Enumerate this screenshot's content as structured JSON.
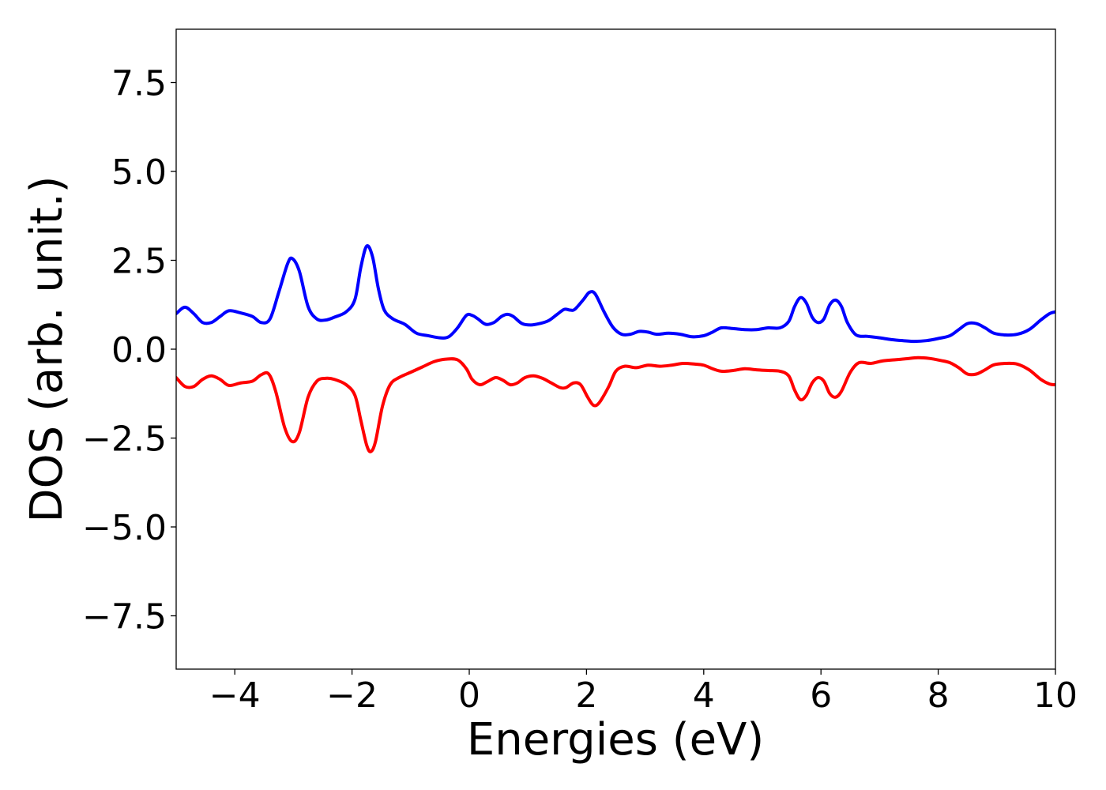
{
  "chart_data": {
    "type": "line",
    "title": "",
    "xlabel": "Energies (eV)",
    "ylabel": "DOS (arb. unit.)",
    "xlim": [
      -5,
      10
    ],
    "ylim": [
      -9,
      9
    ],
    "grid": false,
    "legend": "none",
    "x_ticks": [
      {
        "value": -4,
        "label": "−4"
      },
      {
        "value": -2,
        "label": "−2"
      },
      {
        "value": 0,
        "label": "0"
      },
      {
        "value": 2,
        "label": "2"
      },
      {
        "value": 4,
        "label": "4"
      },
      {
        "value": 6,
        "label": "6"
      },
      {
        "value": 8,
        "label": "8"
      },
      {
        "value": 10,
        "label": "10"
      }
    ],
    "y_ticks": [
      {
        "value": 7.5,
        "label": "7.5"
      },
      {
        "value": 5.0,
        "label": "5.0"
      },
      {
        "value": 2.5,
        "label": "2.5"
      },
      {
        "value": 0.0,
        "label": "0.0"
      },
      {
        "value": -2.5,
        "label": "−2.5"
      },
      {
        "value": -5.0,
        "label": "−5.0"
      },
      {
        "value": -7.5,
        "label": "−7.5"
      }
    ],
    "series": [
      {
        "color": "#0000ff",
        "points": [
          [
            -5.0,
            1.0
          ],
          [
            -4.85,
            1.18
          ],
          [
            -4.7,
            1.0
          ],
          [
            -4.55,
            0.75
          ],
          [
            -4.4,
            0.75
          ],
          [
            -4.25,
            0.92
          ],
          [
            -4.1,
            1.08
          ],
          [
            -3.9,
            1.02
          ],
          [
            -3.7,
            0.92
          ],
          [
            -3.55,
            0.75
          ],
          [
            -3.4,
            0.85
          ],
          [
            -3.25,
            1.6
          ],
          [
            -3.1,
            2.4
          ],
          [
            -3.02,
            2.55
          ],
          [
            -2.9,
            2.2
          ],
          [
            -2.75,
            1.2
          ],
          [
            -2.6,
            0.85
          ],
          [
            -2.45,
            0.82
          ],
          [
            -2.3,
            0.9
          ],
          [
            -2.1,
            1.05
          ],
          [
            -1.95,
            1.4
          ],
          [
            -1.85,
            2.3
          ],
          [
            -1.75,
            2.9
          ],
          [
            -1.65,
            2.6
          ],
          [
            -1.55,
            1.7
          ],
          [
            -1.45,
            1.1
          ],
          [
            -1.3,
            0.85
          ],
          [
            -1.1,
            0.7
          ],
          [
            -0.9,
            0.45
          ],
          [
            -0.7,
            0.38
          ],
          [
            -0.5,
            0.32
          ],
          [
            -0.35,
            0.35
          ],
          [
            -0.2,
            0.6
          ],
          [
            -0.05,
            0.95
          ],
          [
            0.05,
            0.95
          ],
          [
            0.15,
            0.85
          ],
          [
            0.28,
            0.7
          ],
          [
            0.42,
            0.75
          ],
          [
            0.55,
            0.92
          ],
          [
            0.65,
            0.98
          ],
          [
            0.75,
            0.92
          ],
          [
            0.9,
            0.72
          ],
          [
            1.05,
            0.68
          ],
          [
            1.2,
            0.72
          ],
          [
            1.35,
            0.8
          ],
          [
            1.5,
            0.98
          ],
          [
            1.62,
            1.12
          ],
          [
            1.72,
            1.1
          ],
          [
            1.8,
            1.12
          ],
          [
            1.95,
            1.4
          ],
          [
            2.05,
            1.6
          ],
          [
            2.15,
            1.55
          ],
          [
            2.3,
            1.05
          ],
          [
            2.45,
            0.62
          ],
          [
            2.6,
            0.42
          ],
          [
            2.75,
            0.42
          ],
          [
            2.9,
            0.5
          ],
          [
            3.05,
            0.48
          ],
          [
            3.2,
            0.42
          ],
          [
            3.4,
            0.45
          ],
          [
            3.6,
            0.42
          ],
          [
            3.8,
            0.35
          ],
          [
            4.0,
            0.38
          ],
          [
            4.15,
            0.48
          ],
          [
            4.3,
            0.6
          ],
          [
            4.5,
            0.58
          ],
          [
            4.7,
            0.55
          ],
          [
            4.9,
            0.55
          ],
          [
            5.1,
            0.6
          ],
          [
            5.3,
            0.6
          ],
          [
            5.45,
            0.78
          ],
          [
            5.55,
            1.2
          ],
          [
            5.65,
            1.45
          ],
          [
            5.75,
            1.3
          ],
          [
            5.85,
            0.9
          ],
          [
            5.95,
            0.75
          ],
          [
            6.05,
            0.85
          ],
          [
            6.15,
            1.25
          ],
          [
            6.25,
            1.38
          ],
          [
            6.35,
            1.2
          ],
          [
            6.45,
            0.75
          ],
          [
            6.6,
            0.4
          ],
          [
            6.8,
            0.36
          ],
          [
            7.0,
            0.32
          ],
          [
            7.2,
            0.27
          ],
          [
            7.4,
            0.24
          ],
          [
            7.6,
            0.22
          ],
          [
            7.8,
            0.24
          ],
          [
            8.0,
            0.3
          ],
          [
            8.2,
            0.38
          ],
          [
            8.35,
            0.55
          ],
          [
            8.5,
            0.72
          ],
          [
            8.65,
            0.72
          ],
          [
            8.8,
            0.6
          ],
          [
            8.95,
            0.45
          ],
          [
            9.15,
            0.4
          ],
          [
            9.35,
            0.42
          ],
          [
            9.55,
            0.55
          ],
          [
            9.75,
            0.82
          ],
          [
            9.9,
            1.0
          ],
          [
            10.0,
            1.05
          ]
        ]
      },
      {
        "color": "#ff0000",
        "points": [
          [
            -5.0,
            -0.8
          ],
          [
            -4.85,
            -1.05
          ],
          [
            -4.7,
            -1.05
          ],
          [
            -4.55,
            -0.85
          ],
          [
            -4.4,
            -0.75
          ],
          [
            -4.25,
            -0.85
          ],
          [
            -4.1,
            -1.02
          ],
          [
            -3.9,
            -0.95
          ],
          [
            -3.7,
            -0.9
          ],
          [
            -3.55,
            -0.72
          ],
          [
            -3.42,
            -0.7
          ],
          [
            -3.3,
            -1.2
          ],
          [
            -3.15,
            -2.2
          ],
          [
            -3.02,
            -2.6
          ],
          [
            -2.9,
            -2.35
          ],
          [
            -2.75,
            -1.35
          ],
          [
            -2.6,
            -0.9
          ],
          [
            -2.45,
            -0.82
          ],
          [
            -2.3,
            -0.85
          ],
          [
            -2.1,
            -1.0
          ],
          [
            -1.95,
            -1.3
          ],
          [
            -1.85,
            -2.0
          ],
          [
            -1.75,
            -2.7
          ],
          [
            -1.68,
            -2.88
          ],
          [
            -1.6,
            -2.6
          ],
          [
            -1.48,
            -1.6
          ],
          [
            -1.35,
            -1.0
          ],
          [
            -1.2,
            -0.8
          ],
          [
            -1.0,
            -0.65
          ],
          [
            -0.8,
            -0.5
          ],
          [
            -0.6,
            -0.35
          ],
          [
            -0.4,
            -0.28
          ],
          [
            -0.2,
            -0.3
          ],
          [
            -0.05,
            -0.55
          ],
          [
            0.05,
            -0.85
          ],
          [
            0.18,
            -1.0
          ],
          [
            0.3,
            -0.92
          ],
          [
            0.45,
            -0.8
          ],
          [
            0.58,
            -0.88
          ],
          [
            0.7,
            -1.0
          ],
          [
            0.82,
            -0.95
          ],
          [
            0.95,
            -0.8
          ],
          [
            1.1,
            -0.75
          ],
          [
            1.25,
            -0.82
          ],
          [
            1.4,
            -0.95
          ],
          [
            1.55,
            -1.08
          ],
          [
            1.65,
            -1.08
          ],
          [
            1.78,
            -0.95
          ],
          [
            1.9,
            -1.0
          ],
          [
            2.02,
            -1.35
          ],
          [
            2.12,
            -1.58
          ],
          [
            2.22,
            -1.5
          ],
          [
            2.38,
            -1.05
          ],
          [
            2.5,
            -0.62
          ],
          [
            2.65,
            -0.48
          ],
          [
            2.85,
            -0.52
          ],
          [
            3.05,
            -0.45
          ],
          [
            3.25,
            -0.48
          ],
          [
            3.45,
            -0.45
          ],
          [
            3.65,
            -0.4
          ],
          [
            3.85,
            -0.42
          ],
          [
            4.0,
            -0.45
          ],
          [
            4.15,
            -0.55
          ],
          [
            4.3,
            -0.62
          ],
          [
            4.5,
            -0.6
          ],
          [
            4.7,
            -0.55
          ],
          [
            4.9,
            -0.58
          ],
          [
            5.1,
            -0.6
          ],
          [
            5.3,
            -0.62
          ],
          [
            5.45,
            -0.75
          ],
          [
            5.55,
            -1.15
          ],
          [
            5.65,
            -1.42
          ],
          [
            5.75,
            -1.3
          ],
          [
            5.85,
            -0.95
          ],
          [
            5.95,
            -0.8
          ],
          [
            6.05,
            -0.9
          ],
          [
            6.15,
            -1.25
          ],
          [
            6.25,
            -1.35
          ],
          [
            6.35,
            -1.18
          ],
          [
            6.5,
            -0.65
          ],
          [
            6.65,
            -0.38
          ],
          [
            6.85,
            -0.4
          ],
          [
            7.05,
            -0.33
          ],
          [
            7.25,
            -0.3
          ],
          [
            7.45,
            -0.27
          ],
          [
            7.65,
            -0.24
          ],
          [
            7.85,
            -0.26
          ],
          [
            8.05,
            -0.32
          ],
          [
            8.2,
            -0.38
          ],
          [
            8.35,
            -0.52
          ],
          [
            8.5,
            -0.7
          ],
          [
            8.65,
            -0.7
          ],
          [
            8.8,
            -0.58
          ],
          [
            8.95,
            -0.44
          ],
          [
            9.15,
            -0.4
          ],
          [
            9.35,
            -0.42
          ],
          [
            9.55,
            -0.58
          ],
          [
            9.75,
            -0.85
          ],
          [
            9.9,
            -0.98
          ],
          [
            10.0,
            -1.0
          ]
        ]
      }
    ]
  }
}
